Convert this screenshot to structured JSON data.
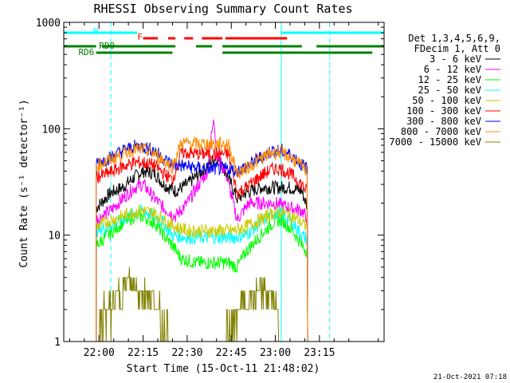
{
  "chart_data": {
    "type": "line",
    "title": "RHESSI Observing Summary Count Rates",
    "xlabel": "Start Time (15-Oct-11 21:48:02)",
    "ylabel": "Count Rate (s⁻¹ detector⁻¹)",
    "yscale": "log",
    "ylim": [
      1,
      1000
    ],
    "xlim_minutes": [
      -12,
      97
    ],
    "x_ticks": [
      {
        "label": "22:00",
        "t": 0
      },
      {
        "label": "22:15",
        "t": 15
      },
      {
        "label": "22:30",
        "t": 30
      },
      {
        "label": "22:45",
        "t": 45
      },
      {
        "label": "23:00",
        "t": 60
      },
      {
        "label": "23:15",
        "t": 75
      }
    ],
    "y_ticks": [
      {
        "label": "1",
        "v": 1
      },
      {
        "label": "10",
        "v": 10
      },
      {
        "label": "100",
        "v": 100
      },
      {
        "label": "1000",
        "v": 1000
      }
    ],
    "legend_title": [
      "Det 1,3,4,5,6,9,",
      "FDecim 1, Att 0"
    ],
    "legend_position": "right",
    "series": [
      {
        "name": "3 - 6 keV",
        "color": "#000000",
        "points": [
          [
            -1,
            18
          ],
          [
            4,
            25
          ],
          [
            8,
            28
          ],
          [
            12,
            35
          ],
          [
            15,
            40
          ],
          [
            19,
            38
          ],
          [
            22,
            30
          ],
          [
            26,
            26
          ],
          [
            30,
            30
          ],
          [
            36,
            42
          ],
          [
            40,
            55
          ],
          [
            43,
            40
          ],
          [
            47,
            22
          ],
          [
            50,
            25
          ],
          [
            55,
            28
          ],
          [
            60,
            28
          ],
          [
            65,
            28
          ],
          [
            69,
            26
          ],
          [
            71,
            18
          ]
        ]
      },
      {
        "name": "6 - 12 keV",
        "color": "#ff00ff",
        "points": [
          [
            -1,
            14
          ],
          [
            4,
            17
          ],
          [
            8,
            22
          ],
          [
            12,
            28
          ],
          [
            15,
            30
          ],
          [
            19,
            22
          ],
          [
            22,
            18
          ],
          [
            26,
            15
          ],
          [
            30,
            20
          ],
          [
            34,
            30
          ],
          [
            37,
            40
          ],
          [
            39,
            140
          ],
          [
            40,
            55
          ],
          [
            43,
            40
          ],
          [
            47,
            14
          ],
          [
            51,
            20
          ],
          [
            55,
            20
          ],
          [
            60,
            20
          ],
          [
            65,
            18
          ],
          [
            69,
            17
          ],
          [
            71,
            14
          ]
        ]
      },
      {
        "name": "12 - 25 keV",
        "color": "#00ff00",
        "points": [
          [
            -1,
            8
          ],
          [
            3,
            10
          ],
          [
            8,
            13
          ],
          [
            12,
            15
          ],
          [
            15,
            15
          ],
          [
            19,
            13
          ],
          [
            22,
            10
          ],
          [
            25,
            8
          ],
          [
            28,
            6
          ],
          [
            33,
            5.5
          ],
          [
            38,
            5.5
          ],
          [
            44,
            5.5
          ],
          [
            47,
            5
          ],
          [
            50,
            7
          ],
          [
            55,
            10
          ],
          [
            59,
            13
          ],
          [
            62,
            14
          ],
          [
            66,
            11
          ],
          [
            69,
            8
          ],
          [
            71,
            7
          ]
        ]
      },
      {
        "name": "25 - 50 keV",
        "color": "#00ffff",
        "points": [
          [
            -1,
            11
          ],
          [
            3,
            12
          ],
          [
            8,
            14
          ],
          [
            12,
            16
          ],
          [
            15,
            17
          ],
          [
            19,
            15
          ],
          [
            22,
            13
          ],
          [
            25,
            10
          ],
          [
            30,
            9.5
          ],
          [
            36,
            9.5
          ],
          [
            42,
            9.5
          ],
          [
            46,
            9.5
          ],
          [
            50,
            10
          ],
          [
            55,
            13
          ],
          [
            59,
            16
          ],
          [
            62,
            16
          ],
          [
            66,
            13
          ],
          [
            69,
            10
          ],
          [
            71,
            9
          ]
        ]
      },
      {
        "name": "50 - 100 keV",
        "color": "#cccc00",
        "points": [
          [
            -1,
            12
          ],
          [
            3,
            13.5
          ],
          [
            8,
            15
          ],
          [
            12,
            16.5
          ],
          [
            15,
            17
          ],
          [
            19,
            16
          ],
          [
            22,
            14
          ],
          [
            26,
            12
          ],
          [
            30,
            11
          ],
          [
            36,
            11
          ],
          [
            42,
            11
          ],
          [
            46,
            11
          ],
          [
            50,
            12
          ],
          [
            55,
            14
          ],
          [
            59,
            16
          ],
          [
            62,
            16.5
          ],
          [
            66,
            15
          ],
          [
            69,
            13
          ],
          [
            71,
            12
          ]
        ]
      },
      {
        "name": "100 - 300 keV",
        "color": "#ff0000",
        "points": [
          [
            -1,
            35
          ],
          [
            3,
            38
          ],
          [
            8,
            44
          ],
          [
            12,
            48
          ],
          [
            15,
            48
          ],
          [
            19,
            45
          ],
          [
            22,
            38
          ],
          [
            25,
            33
          ],
          [
            28,
            60
          ],
          [
            33,
            58
          ],
          [
            38,
            58
          ],
          [
            44,
            58
          ],
          [
            47,
            25
          ],
          [
            50,
            28
          ],
          [
            55,
            36
          ],
          [
            59,
            42
          ],
          [
            62,
            42
          ],
          [
            66,
            36
          ],
          [
            69,
            30
          ],
          [
            71,
            25
          ]
        ]
      },
      {
        "name": "300 - 800 keV",
        "color": "#0000ff",
        "points": [
          [
            -1,
            48
          ],
          [
            3,
            52
          ],
          [
            8,
            62
          ],
          [
            12,
            68
          ],
          [
            15,
            68
          ],
          [
            19,
            62
          ],
          [
            22,
            52
          ],
          [
            25,
            46
          ],
          [
            28,
            45
          ],
          [
            33,
            43
          ],
          [
            38,
            42
          ],
          [
            44,
            42
          ],
          [
            47,
            40
          ],
          [
            50,
            44
          ],
          [
            55,
            54
          ],
          [
            59,
            62
          ],
          [
            62,
            62
          ],
          [
            66,
            55
          ],
          [
            69,
            46
          ],
          [
            71,
            42
          ]
        ]
      },
      {
        "name": "800 - 7000 keV",
        "color": "#ff8c00",
        "points": [
          [
            -1,
            45
          ],
          [
            3,
            50
          ],
          [
            8,
            58
          ],
          [
            12,
            64
          ],
          [
            15,
            64
          ],
          [
            19,
            58
          ],
          [
            22,
            50
          ],
          [
            25,
            44
          ],
          [
            28,
            74
          ],
          [
            33,
            72
          ],
          [
            38,
            72
          ],
          [
            44,
            72
          ],
          [
            47,
            38
          ],
          [
            50,
            42
          ],
          [
            55,
            52
          ],
          [
            59,
            60
          ],
          [
            62,
            60
          ],
          [
            66,
            52
          ],
          [
            69,
            44
          ],
          [
            71,
            40
          ]
        ]
      },
      {
        "name": "7000 - 15000 keV",
        "color": "#808000",
        "points": [
          [
            -1,
            1
          ],
          [
            2,
            2
          ],
          [
            5,
            2
          ],
          [
            7,
            3
          ],
          [
            10,
            3.5
          ],
          [
            12,
            3.3
          ],
          [
            15,
            3
          ],
          [
            18,
            2.5
          ],
          [
            20,
            2
          ],
          [
            22,
            1.5
          ],
          [
            24,
            1
          ],
          [
            43,
            1
          ],
          [
            45,
            1.5
          ],
          [
            48,
            2
          ],
          [
            52,
            2.5
          ],
          [
            55,
            3
          ],
          [
            58,
            2.8
          ],
          [
            60,
            2.5
          ],
          [
            61,
            1.5
          ],
          [
            62,
            1
          ]
        ]
      }
    ],
    "annotations": {
      "bars": [
        {
          "label": "N",
          "color": "#00ffff",
          "segments": [
            [
              -12,
              13
            ],
            [
              62,
              97
            ]
          ]
        },
        {
          "label": "F",
          "color": "#ff0000",
          "segments": [
            [
              15,
              20
            ],
            [
              23.5,
              26
            ],
            [
              29,
              32
            ],
            [
              35,
              42
            ],
            [
              43,
              64
            ]
          ]
        },
        {
          "label": "RD0",
          "color": "#008000",
          "segments": [
            [
              -12,
              -1
            ],
            [
              1,
              26
            ],
            [
              33,
              38.5
            ],
            [
              42,
              69
            ],
            [
              74,
              97
            ]
          ]
        },
        {
          "label": "RD6",
          "color": "#008000",
          "segments": [
            [
              -1,
              25
            ],
            [
              42,
              93
            ]
          ]
        }
      ],
      "vlines": [
        {
          "t": -12,
          "style": "solid",
          "color": "#00ffff"
        },
        {
          "t": 4,
          "style": "dashed",
          "color": "#00ffff"
        },
        {
          "t": 62,
          "style": "solid",
          "color": "#00ffff"
        },
        {
          "t": 78.5,
          "style": "dashed",
          "color": "#00ffff"
        }
      ]
    },
    "footer": "21-Oct-2021 07:18"
  }
}
